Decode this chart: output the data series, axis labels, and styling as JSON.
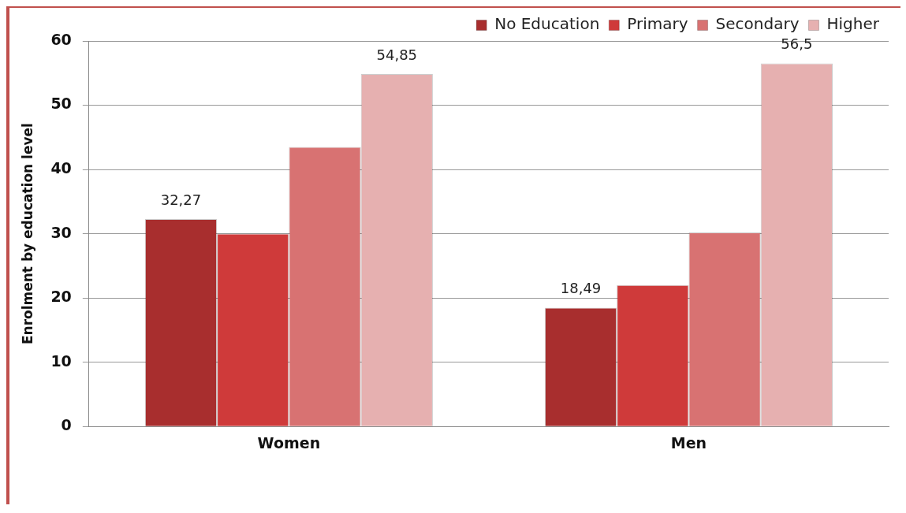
{
  "chart_data": {
    "type": "bar",
    "ylabel": "Enrolment by education level",
    "categories": [
      "Women",
      "Men"
    ],
    "series": [
      {
        "name": "No Education",
        "color": "#a82e2e",
        "values": [
          32.27,
          18.49
        ],
        "value_labels": [
          "32,27",
          "18,49"
        ]
      },
      {
        "name": "Primary",
        "color": "#cf3a3a",
        "values": [
          30.0,
          22.0
        ],
        "value_labels": [
          null,
          null
        ]
      },
      {
        "name": "Secondary",
        "color": "#d87272",
        "values": [
          43.5,
          30.2
        ],
        "value_labels": [
          null,
          null
        ]
      },
      {
        "name": "Higher",
        "color": "#e6b0b0",
        "values": [
          54.85,
          56.5
        ],
        "value_labels": [
          "54,85",
          "56,5"
        ]
      }
    ],
    "ylim": [
      0,
      60
    ],
    "yticks": [
      0,
      10,
      20,
      30,
      40,
      50,
      60
    ],
    "grid": "y",
    "legend": "top right"
  }
}
